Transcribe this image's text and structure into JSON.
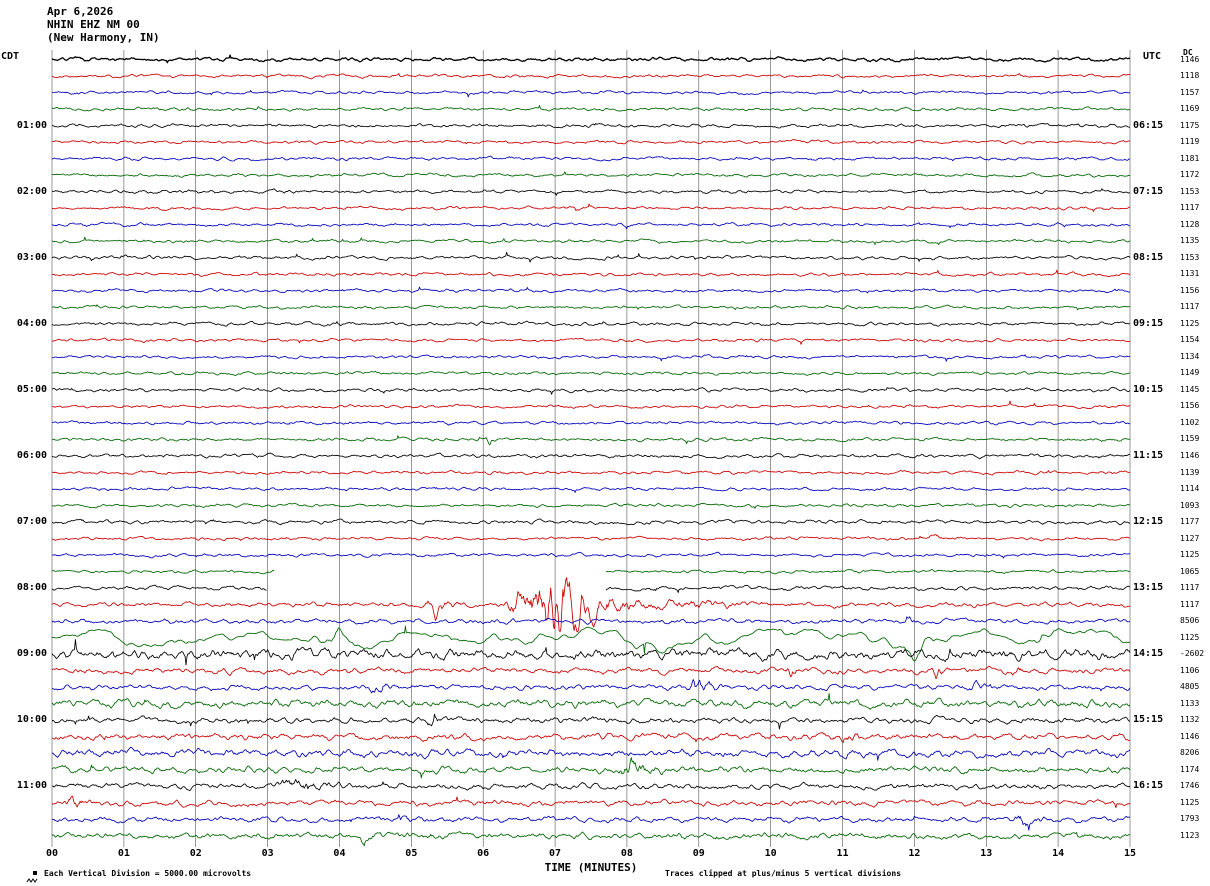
{
  "header": {
    "date": "Apr 6,2026",
    "station": "NHIN EHZ NM 00",
    "location": "(New Harmony, IN)"
  },
  "axes": {
    "left_tz": "CDT",
    "right_tz": "UTC",
    "dc_header": "DC"
  },
  "chart_data": {
    "type": "line",
    "subtype": "helicorder_seismogram",
    "title": "Apr 6,2026 NHIN EHZ NM 00 (New Harmony, IN)",
    "xlabel": "TIME (MINUTES)",
    "scale_note": "Each Vertical Division = 5000.00 microvolts",
    "clip_note": "Traces clipped at plus/minus 5 vertical divisions",
    "x_range_minutes": [
      0,
      15
    ],
    "minutes_per_row": 15,
    "x_ticks": [
      "00",
      "01",
      "02",
      "03",
      "04",
      "05",
      "06",
      "07",
      "08",
      "09",
      "10",
      "11",
      "12",
      "13",
      "14",
      "15"
    ],
    "palette": {
      "black": "#000000",
      "red": "#cc0000",
      "blue": "#0000bb",
      "green": "#006600"
    },
    "color_cycle": [
      "black",
      "red",
      "blue",
      "green"
    ],
    "clip_divisions": 5,
    "microvolts_per_division": "5000.00",
    "rows": [
      {
        "dc": 1146,
        "noise": 1.2
      },
      {
        "dc": 1118,
        "noise": 1.0
      },
      {
        "dc": 1157,
        "noise": 1.0
      },
      {
        "dc": 1169,
        "noise": 1.0
      },
      {
        "cdt": "01:00",
        "utc": "06:15",
        "dc": 1175,
        "noise": 1.1
      },
      {
        "dc": 1119,
        "noise": 1.0
      },
      {
        "dc": 1181,
        "noise": 1.0
      },
      {
        "dc": 1172,
        "noise": 1.0
      },
      {
        "cdt": "02:00",
        "utc": "07:15",
        "dc": 1153,
        "noise": 1.1
      },
      {
        "dc": 1117,
        "noise": 1.0
      },
      {
        "dc": 1128,
        "noise": 1.0
      },
      {
        "dc": 1135,
        "noise": 1.0
      },
      {
        "cdt": "03:00",
        "utc": "08:15",
        "dc": 1153,
        "noise": 1.1
      },
      {
        "dc": 1131,
        "noise": 1.0
      },
      {
        "dc": 1156,
        "noise": 1.0
      },
      {
        "dc": 1117,
        "noise": 1.0
      },
      {
        "cdt": "04:00",
        "utc": "09:15",
        "dc": 1125,
        "noise": 1.1
      },
      {
        "dc": 1154,
        "noise": 1.0
      },
      {
        "dc": 1134,
        "noise": 1.0
      },
      {
        "dc": 1149,
        "noise": 1.0
      },
      {
        "cdt": "05:00",
        "utc": "10:15",
        "dc": 1145,
        "noise": 1.1
      },
      {
        "dc": 1156,
        "noise": 1.0
      },
      {
        "dc": 1102,
        "noise": 1.0
      },
      {
        "dc": 1159,
        "noise": 1.0,
        "events": [
          {
            "s": 6.0,
            "e": 6.2,
            "a": 4,
            "p": 6.07
          }
        ]
      },
      {
        "cdt": "06:00",
        "utc": "11:15",
        "dc": 1146,
        "noise": 1.1
      },
      {
        "dc": 1139,
        "noise": 1.0
      },
      {
        "dc": 1114,
        "noise": 1.0
      },
      {
        "dc": 1093,
        "noise": 1.0
      },
      {
        "cdt": "07:00",
        "utc": "12:15",
        "dc": 1177,
        "noise": 1.2
      },
      {
        "dc": 1127,
        "noise": 1.0,
        "events": [
          {
            "s": 12.2,
            "e": 12.4,
            "a": 4.5,
            "p": 12.27
          }
        ]
      },
      {
        "dc": 1125,
        "noise": 1.0,
        "events": [
          {
            "s": 12.95,
            "e": 13.1,
            "a": 3,
            "p": 13.0
          }
        ]
      },
      {
        "dc": 1065,
        "noise": 1.0,
        "gaps": [
          [
            3.1,
            7.7
          ]
        ]
      },
      {
        "cdt": "08:00",
        "utc": "13:15",
        "dc": 1117,
        "noise": 1.2,
        "gaps": [
          [
            3.0,
            7.7
          ]
        ]
      },
      {
        "dc": 1117,
        "noise": 1.4,
        "events": [
          {
            "s": 5.15,
            "e": 5.8,
            "a": 7,
            "p": 5.35
          },
          {
            "s": 6.25,
            "e": 8.6,
            "a": 26,
            "p": 7.0
          },
          {
            "s": 8.6,
            "e": 10.5,
            "a": 3,
            "p": 8.7
          }
        ]
      },
      {
        "dc": 8506,
        "noise": 1.5,
        "events": [
          {
            "s": 11.8,
            "e": 12.15,
            "a": 3,
            "p": 11.9
          }
        ]
      },
      {
        "dc": 1125,
        "noise": 2.2,
        "lf": true,
        "events": [
          {
            "s": 3.6,
            "e": 4.6,
            "a": 4,
            "p": 4.0
          },
          {
            "s": 11.8,
            "e": 12.5,
            "a": 4,
            "p": 12.0
          },
          {
            "s": 13.6,
            "e": 14.1,
            "a": 3.5,
            "p": 13.75
          }
        ]
      },
      {
        "cdt": "09:00",
        "utc": "14:15",
        "dc": -2602,
        "noise": 3.2,
        "events": [
          {
            "s": 12.4,
            "e": 12.65,
            "a": 5,
            "p": 12.5
          }
        ]
      },
      {
        "dc": 1106,
        "noise": 1.8,
        "events": [
          {
            "s": 10.2,
            "e": 10.5,
            "a": 5,
            "p": 10.3
          },
          {
            "s": 12.2,
            "e": 12.5,
            "a": 5,
            "p": 12.3
          },
          {
            "s": 13.3,
            "e": 13.6,
            "a": 4,
            "p": 13.4
          }
        ]
      },
      {
        "dc": 4805,
        "noise": 1.6,
        "events": [
          {
            "s": 4.4,
            "e": 4.9,
            "a": 6,
            "p": 4.55
          },
          {
            "s": 8.85,
            "e": 9.4,
            "a": 7,
            "p": 9.0
          },
          {
            "s": 12.75,
            "e": 13.1,
            "a": 5,
            "p": 12.85
          }
        ]
      },
      {
        "dc": 1133,
        "noise": 2.4
      },
      {
        "cdt": "10:00",
        "utc": "15:15",
        "dc": 1132,
        "noise": 1.8,
        "events": [
          {
            "s": 5.2,
            "e": 5.5,
            "a": 4.5,
            "p": 5.3
          }
        ]
      },
      {
        "dc": 1146,
        "noise": 2.0,
        "events": [
          {
            "s": 10.8,
            "e": 11.5,
            "a": 4,
            "p": 11.0
          }
        ]
      },
      {
        "dc": 8206,
        "noise": 2.4
      },
      {
        "dc": 1174,
        "noise": 2.0,
        "events": [
          {
            "s": 7.85,
            "e": 8.6,
            "a": 8,
            "p": 8.05
          }
        ]
      },
      {
        "cdt": "11:00",
        "utc": "16:15",
        "dc": 1746,
        "noise": 1.8,
        "events": [
          {
            "s": 3.0,
            "e": 4.3,
            "a": 4,
            "p": 3.5
          }
        ]
      },
      {
        "dc": 1125,
        "noise": 1.8,
        "events": [
          {
            "s": 0.15,
            "e": 0.6,
            "a": 5,
            "p": 0.3
          }
        ]
      },
      {
        "dc": 1793,
        "noise": 1.6,
        "events": [
          {
            "s": 4.8,
            "e": 5.0,
            "a": 9,
            "p": 4.85
          },
          {
            "s": 13.35,
            "e": 13.95,
            "a": 5,
            "p": 13.5
          }
        ]
      },
      {
        "dc": 1123,
        "noise": 1.9,
        "events": [
          {
            "s": 4.25,
            "e": 4.6,
            "a": 3.5,
            "p": 4.35
          }
        ]
      }
    ]
  }
}
